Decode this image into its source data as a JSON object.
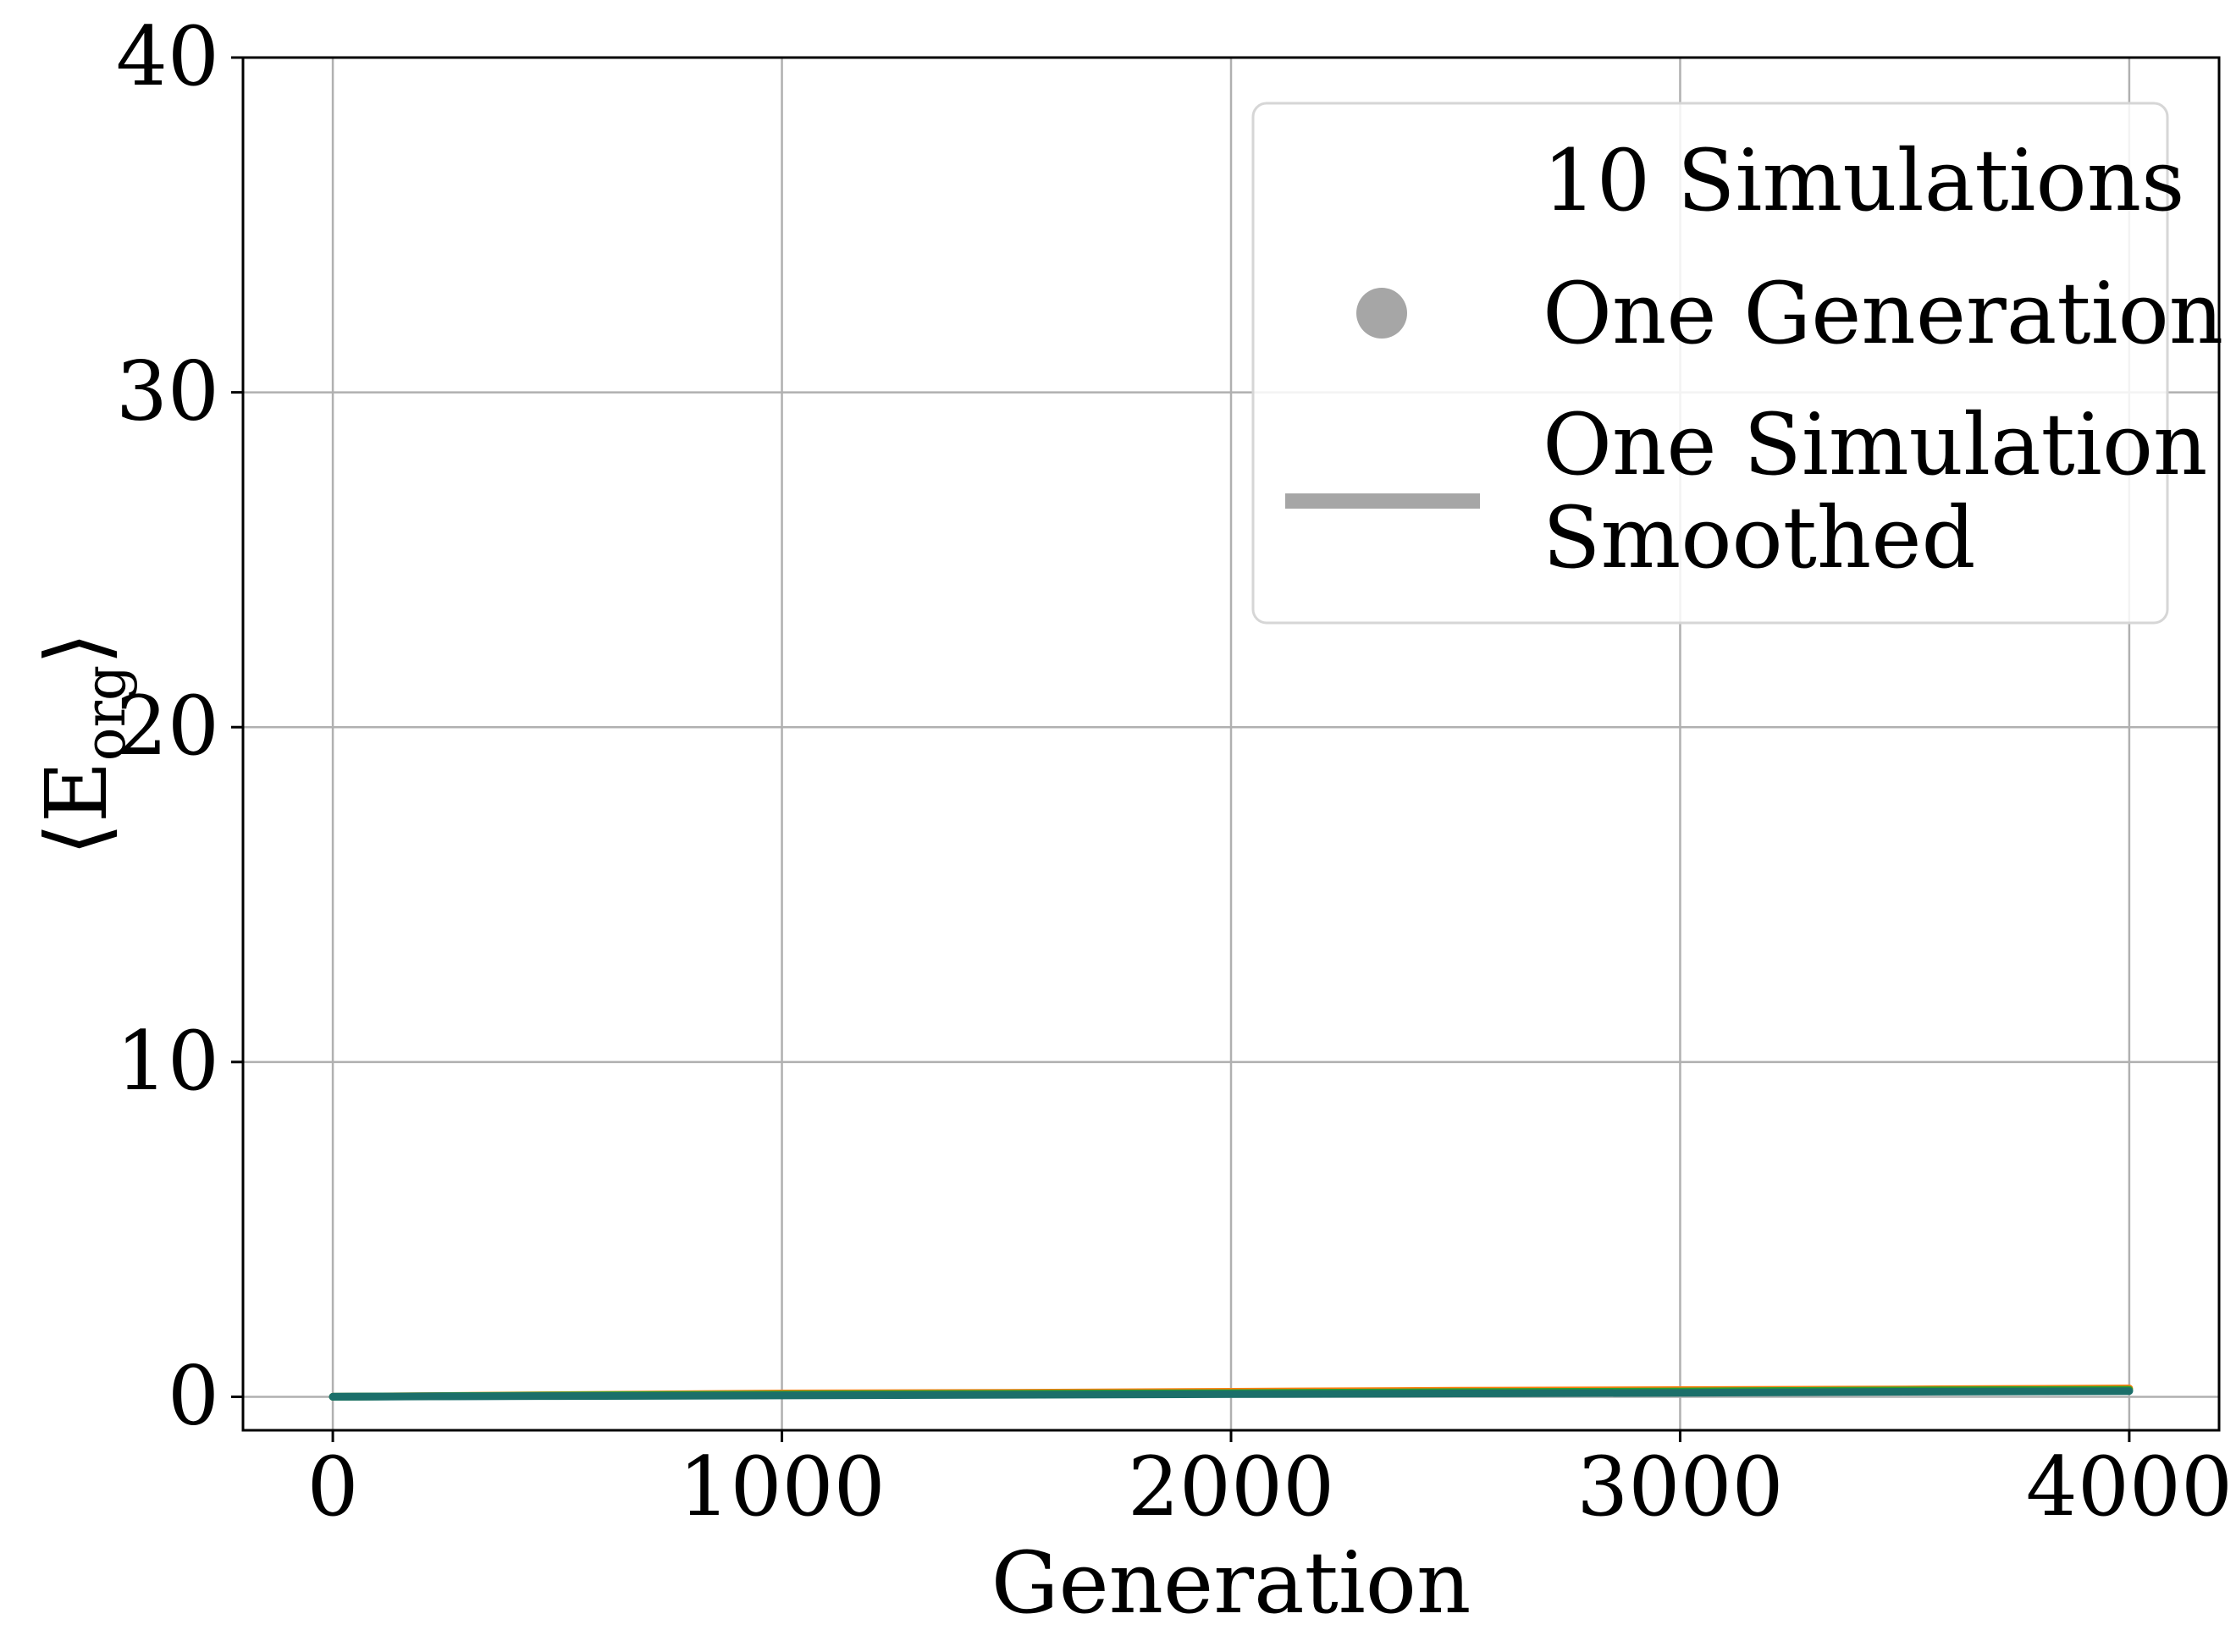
{
  "chart_data": {
    "type": "line",
    "xlabel": "Generation",
    "ylabel_main": "⟨E",
    "ylabel_sub": "org",
    "ylabel_close": "⟩",
    "xlim": [
      -200,
      4200
    ],
    "ylim": [
      -1,
      40
    ],
    "x_ticks": [
      0,
      1000,
      2000,
      3000,
      4000
    ],
    "y_ticks": [
      0,
      10,
      20,
      30,
      40
    ],
    "x_tick_labels": [
      "0",
      "1000",
      "2000",
      "3000",
      "4000"
    ],
    "y_tick_labels": [
      "0",
      "10",
      "20",
      "30",
      "40"
    ],
    "grid": true,
    "legend_position": "top-right",
    "legend": {
      "title": "10 Simulations",
      "entries": [
        {
          "marker": "dot",
          "label": "One Generation"
        },
        {
          "marker": "line",
          "label_line1": "One Simulation",
          "label_line2": "Smoothed"
        }
      ],
      "color": "#a6a6a6"
    },
    "series": [
      {
        "color": "#ff7f0e",
        "x": [
          0,
          500,
          1000,
          1500,
          2000,
          2500,
          3000,
          3500,
          4000
        ],
        "y": [
          0.0,
          0.05,
          0.1,
          0.12,
          0.15,
          0.18,
          0.2,
          0.22,
          0.25
        ]
      },
      {
        "color": "#1f77b4",
        "x": [
          0,
          500,
          1000,
          1500,
          2000,
          2500,
          3000,
          3500,
          4000
        ],
        "y": [
          0.0,
          0.03,
          0.06,
          0.08,
          0.1,
          0.12,
          0.14,
          0.16,
          0.18
        ]
      },
      {
        "color": "#2ca02c",
        "x": [
          0,
          500,
          1000,
          1500,
          2000,
          2500,
          3000,
          3500,
          4000
        ],
        "y": [
          0.0,
          0.04,
          0.07,
          0.09,
          0.11,
          0.14,
          0.16,
          0.19,
          0.21
        ]
      },
      {
        "color": "#1b6f6a",
        "x": [
          0,
          500,
          1000,
          1500,
          2000,
          2500,
          3000,
          3500,
          4000
        ],
        "y": [
          0.0,
          0.02,
          0.04,
          0.06,
          0.08,
          0.1,
          0.12,
          0.15,
          0.17
        ]
      }
    ]
  }
}
